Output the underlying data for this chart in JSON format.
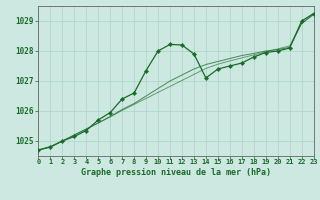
{
  "background_color": "#cce8e0",
  "grid_color": "#aad4c8",
  "line_color": "#1a6b2a",
  "title": "Graphe pression niveau de la mer (hPa)",
  "xlim": [
    0,
    23
  ],
  "ylim": [
    1024.5,
    1029.5
  ],
  "yticks": [
    1025,
    1026,
    1027,
    1028,
    1029
  ],
  "xtick_labels": [
    "0",
    "1",
    "2",
    "3",
    "4",
    "5",
    "6",
    "7",
    "8",
    "9",
    "10",
    "11",
    "12",
    "13",
    "14",
    "15",
    "16",
    "17",
    "18",
    "19",
    "20",
    "21",
    "22",
    "23"
  ],
  "series1_x": [
    0,
    1,
    2,
    3,
    4,
    5,
    6,
    7,
    8,
    9,
    10,
    11,
    12,
    13,
    14,
    15,
    16,
    17,
    18,
    19,
    20,
    21,
    22,
    23
  ],
  "series1_y": [
    1024.7,
    1024.8,
    1025.0,
    1025.15,
    1025.35,
    1025.7,
    1025.95,
    1026.4,
    1026.6,
    1027.35,
    1028.0,
    1028.22,
    1028.2,
    1027.9,
    1027.1,
    1027.4,
    1027.5,
    1027.6,
    1027.8,
    1027.95,
    1028.0,
    1028.1,
    1029.0,
    1029.25
  ],
  "series2_x": [
    0,
    1,
    2,
    3,
    4,
    5,
    6,
    7,
    8,
    9,
    10,
    11,
    12,
    13,
    14,
    15,
    16,
    17,
    18,
    19,
    20,
    21,
    22,
    23
  ],
  "series2_y": [
    1024.7,
    1024.8,
    1025.0,
    1025.2,
    1025.4,
    1025.6,
    1025.82,
    1026.05,
    1026.25,
    1026.5,
    1026.75,
    1027.0,
    1027.2,
    1027.4,
    1027.55,
    1027.65,
    1027.75,
    1027.85,
    1027.92,
    1028.0,
    1028.05,
    1028.12,
    1028.92,
    1029.22
  ],
  "series3_x": [
    0,
    1,
    2,
    3,
    4,
    5,
    6,
    7,
    8,
    9,
    10,
    11,
    12,
    13,
    14,
    15,
    16,
    17,
    18,
    19,
    20,
    21,
    22,
    23
  ],
  "series3_y": [
    1024.7,
    1024.82,
    1025.0,
    1025.2,
    1025.4,
    1025.6,
    1025.8,
    1026.02,
    1026.22,
    1026.42,
    1026.62,
    1026.82,
    1027.02,
    1027.22,
    1027.42,
    1027.56,
    1027.67,
    1027.77,
    1027.87,
    1027.97,
    1028.07,
    1028.17,
    1028.92,
    1029.22
  ]
}
